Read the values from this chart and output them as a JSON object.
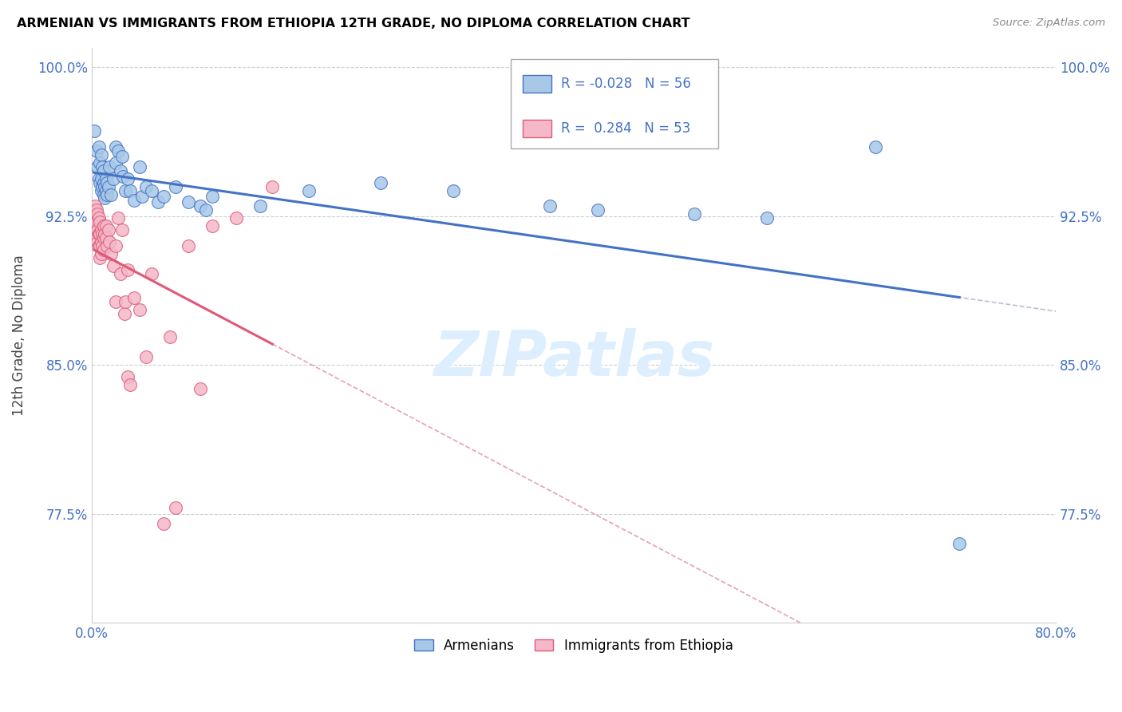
{
  "title": "ARMENIAN VS IMMIGRANTS FROM ETHIOPIA 12TH GRADE, NO DIPLOMA CORRELATION CHART",
  "source": "Source: ZipAtlas.com",
  "ylabel": "12th Grade, No Diploma",
  "x_min": 0.0,
  "x_max": 0.8,
  "y_min": 0.72,
  "y_max": 1.01,
  "x_ticks": [
    0.0,
    0.1,
    0.2,
    0.3,
    0.4,
    0.5,
    0.6,
    0.7,
    0.8
  ],
  "y_ticks": [
    0.775,
    0.85,
    0.925,
    1.0
  ],
  "y_tick_labels": [
    "77.5%",
    "85.0%",
    "92.5%",
    "100.0%"
  ],
  "legend_armenians": "Armenians",
  "legend_ethiopia": "Immigrants from Ethiopia",
  "r_armenian": "-0.028",
  "n_armenian": "56",
  "r_ethiopia": "0.284",
  "n_ethiopia": "53",
  "color_armenian_fill": "#a8c8e8",
  "color_armenian_edge": "#4472c4",
  "color_ethiopia_fill": "#f4b8c8",
  "color_ethiopia_edge": "#e05878",
  "color_line_armenian": "#4472c4",
  "color_line_ethiopia": "#e05878",
  "color_dashed": "#c8b8d0",
  "watermark_text": "ZIPatlas",
  "watermark_color": "#ddeeff",
  "armenian_scatter": [
    [
      0.002,
      0.968
    ],
    [
      0.004,
      0.958
    ],
    [
      0.005,
      0.95
    ],
    [
      0.006,
      0.96
    ],
    [
      0.006,
      0.944
    ],
    [
      0.007,
      0.952
    ],
    [
      0.007,
      0.942
    ],
    [
      0.008,
      0.956
    ],
    [
      0.008,
      0.944
    ],
    [
      0.008,
      0.938
    ],
    [
      0.009,
      0.95
    ],
    [
      0.009,
      0.94
    ],
    [
      0.01,
      0.948
    ],
    [
      0.01,
      0.942
    ],
    [
      0.01,
      0.936
    ],
    [
      0.011,
      0.94
    ],
    [
      0.011,
      0.934
    ],
    [
      0.012,
      0.944
    ],
    [
      0.012,
      0.938
    ],
    [
      0.013,
      0.942
    ],
    [
      0.013,
      0.936
    ],
    [
      0.014,
      0.94
    ],
    [
      0.015,
      0.95
    ],
    [
      0.016,
      0.936
    ],
    [
      0.018,
      0.944
    ],
    [
      0.02,
      0.952
    ],
    [
      0.02,
      0.96
    ],
    [
      0.022,
      0.958
    ],
    [
      0.024,
      0.948
    ],
    [
      0.025,
      0.955
    ],
    [
      0.026,
      0.945
    ],
    [
      0.028,
      0.938
    ],
    [
      0.03,
      0.944
    ],
    [
      0.032,
      0.938
    ],
    [
      0.035,
      0.933
    ],
    [
      0.04,
      0.95
    ],
    [
      0.042,
      0.935
    ],
    [
      0.045,
      0.94
    ],
    [
      0.05,
      0.938
    ],
    [
      0.055,
      0.932
    ],
    [
      0.06,
      0.935
    ],
    [
      0.07,
      0.94
    ],
    [
      0.08,
      0.932
    ],
    [
      0.09,
      0.93
    ],
    [
      0.095,
      0.928
    ],
    [
      0.1,
      0.935
    ],
    [
      0.14,
      0.93
    ],
    [
      0.18,
      0.938
    ],
    [
      0.24,
      0.942
    ],
    [
      0.3,
      0.938
    ],
    [
      0.38,
      0.93
    ],
    [
      0.42,
      0.928
    ],
    [
      0.5,
      0.926
    ],
    [
      0.56,
      0.924
    ],
    [
      0.65,
      0.96
    ],
    [
      0.72,
      0.76
    ]
  ],
  "ethiopia_scatter": [
    [
      0.002,
      0.92
    ],
    [
      0.003,
      0.93
    ],
    [
      0.003,
      0.918
    ],
    [
      0.004,
      0.928
    ],
    [
      0.004,
      0.922
    ],
    [
      0.005,
      0.926
    ],
    [
      0.005,
      0.918
    ],
    [
      0.005,
      0.912
    ],
    [
      0.006,
      0.924
    ],
    [
      0.006,
      0.916
    ],
    [
      0.006,
      0.91
    ],
    [
      0.007,
      0.922
    ],
    [
      0.007,
      0.916
    ],
    [
      0.007,
      0.91
    ],
    [
      0.007,
      0.904
    ],
    [
      0.008,
      0.918
    ],
    [
      0.008,
      0.912
    ],
    [
      0.008,
      0.906
    ],
    [
      0.009,
      0.916
    ],
    [
      0.009,
      0.91
    ],
    [
      0.01,
      0.92
    ],
    [
      0.01,
      0.914
    ],
    [
      0.01,
      0.908
    ],
    [
      0.011,
      0.916
    ],
    [
      0.012,
      0.92
    ],
    [
      0.012,
      0.914
    ],
    [
      0.013,
      0.91
    ],
    [
      0.014,
      0.918
    ],
    [
      0.015,
      0.912
    ],
    [
      0.016,
      0.906
    ],
    [
      0.018,
      0.9
    ],
    [
      0.02,
      0.91
    ],
    [
      0.02,
      0.882
    ],
    [
      0.022,
      0.924
    ],
    [
      0.024,
      0.896
    ],
    [
      0.025,
      0.918
    ],
    [
      0.027,
      0.876
    ],
    [
      0.028,
      0.882
    ],
    [
      0.03,
      0.898
    ],
    [
      0.03,
      0.844
    ],
    [
      0.032,
      0.84
    ],
    [
      0.035,
      0.884
    ],
    [
      0.04,
      0.878
    ],
    [
      0.045,
      0.854
    ],
    [
      0.05,
      0.896
    ],
    [
      0.06,
      0.77
    ],
    [
      0.065,
      0.864
    ],
    [
      0.07,
      0.778
    ],
    [
      0.08,
      0.91
    ],
    [
      0.09,
      0.838
    ],
    [
      0.1,
      0.92
    ],
    [
      0.12,
      0.924
    ],
    [
      0.15,
      0.94
    ]
  ]
}
